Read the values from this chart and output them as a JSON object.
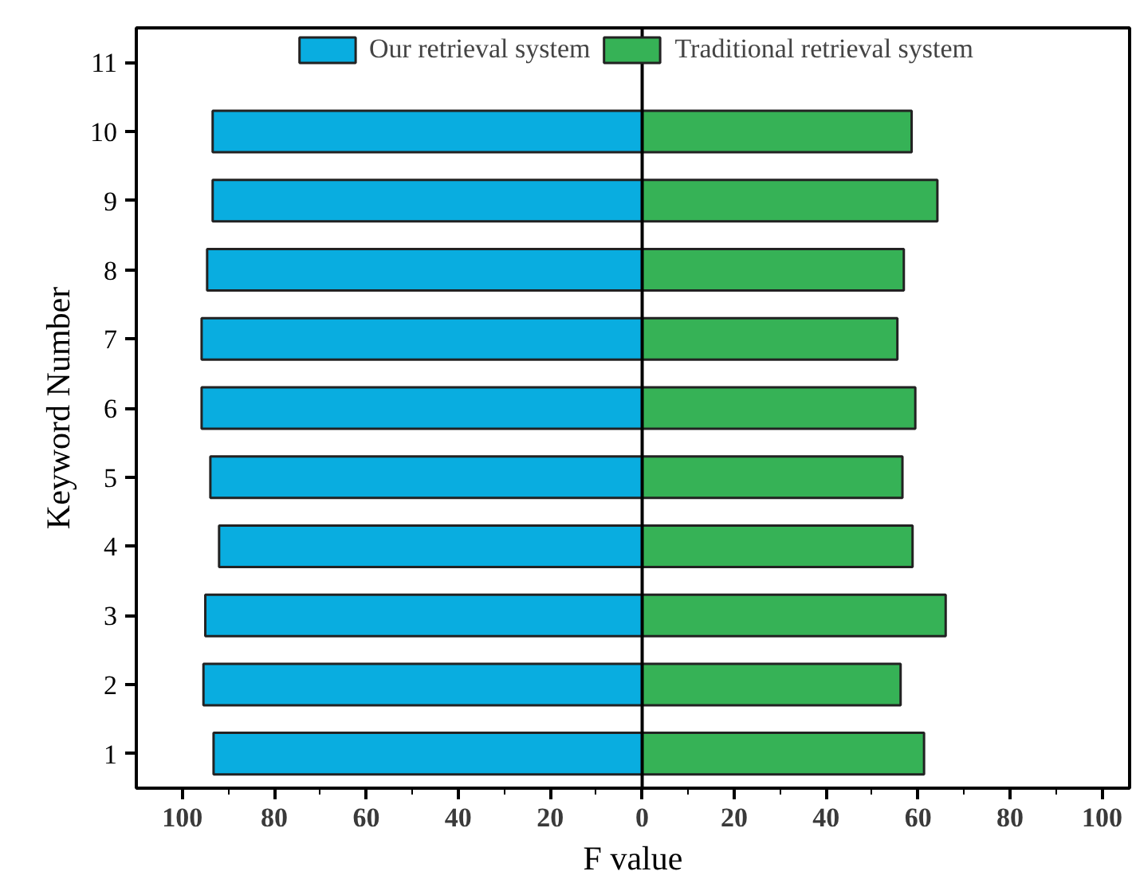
{
  "chart_data": {
    "type": "bar",
    "orientation": "horizontal",
    "xlabel": "F value",
    "ylabel": "Keyword Number",
    "categories": [
      "11",
      "10",
      "9",
      "8",
      "7",
      "6",
      "5",
      "4",
      "3",
      "2",
      "1"
    ],
    "series": [
      {
        "name": "Our retrieval system",
        "color": "#09ade0",
        "values": [
          null,
          -93.4,
          -93.4,
          -94.6,
          -95.8,
          -95.8,
          -93.9,
          -92.0,
          -95.0,
          -95.4,
          -93.2
        ]
      },
      {
        "name": "Traditional retrieval system",
        "color": "#36b256",
        "values": [
          null,
          58.6,
          64.2,
          56.9,
          55.5,
          59.4,
          56.6,
          58.8,
          66.0,
          56.2,
          61.3
        ]
      }
    ],
    "xlim": [
      -110,
      106
    ],
    "xticks": [
      {
        "value": -100,
        "label": "100"
      },
      {
        "value": -80,
        "label": "80"
      },
      {
        "value": -60,
        "label": "60"
      },
      {
        "value": -40,
        "label": "40"
      },
      {
        "value": -20,
        "label": "20"
      },
      0,
      20,
      40,
      60,
      80,
      100
    ],
    "ref_lines": [
      {
        "axis": "x",
        "value": 0,
        "color": "#000000"
      }
    ],
    "legend": "top",
    "grid": false,
    "stacked": true
  }
}
